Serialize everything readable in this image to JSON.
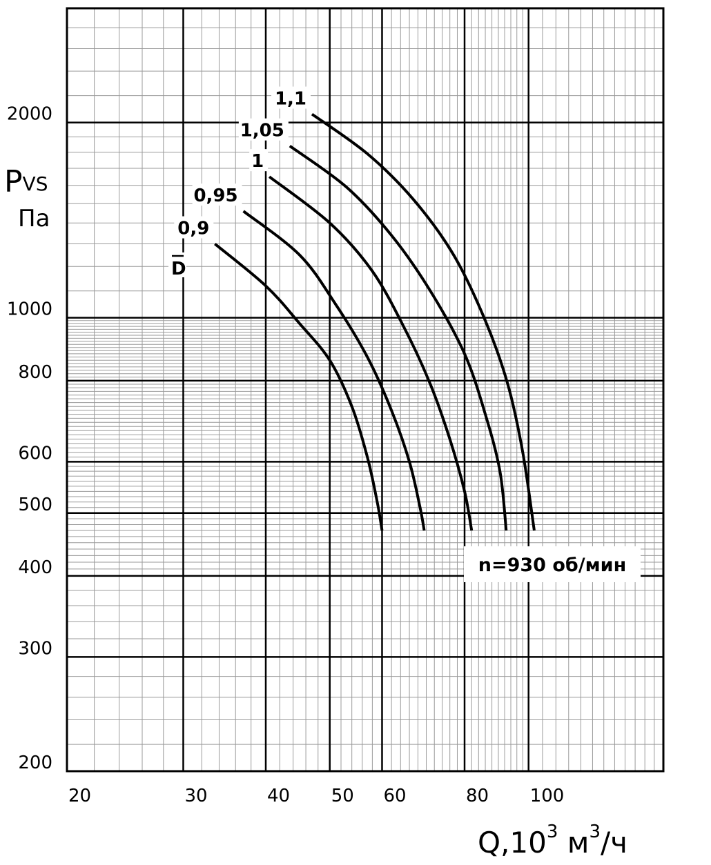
{
  "chart_data": {
    "type": "line",
    "x_scale": "log",
    "y_scale": "log",
    "xlim": [
      20,
      160
    ],
    "ylim": [
      200,
      3000
    ],
    "grid": true,
    "ylabel_main": "P",
    "ylabel_sub": "VS",
    "yunit": "Па",
    "xlabel_main": "Q,10",
    "xlabel_sup1": "3",
    "xlabel_mid": " м",
    "xlabel_sup2": "3",
    "xlabel_end": "/ч",
    "annotation": "n=930 об/мин",
    "legend_symbol": "D",
    "x_ticks": [
      20,
      30,
      40,
      50,
      60,
      80,
      100
    ],
    "x_tick_labels": [
      "20",
      "30",
      "40",
      "50",
      "60",
      "80",
      "100"
    ],
    "y_ticks": [
      200,
      300,
      400,
      500,
      600,
      800,
      1000,
      2000
    ],
    "y_tick_labels": [
      "200",
      "300",
      "400",
      "500",
      "600",
      "800",
      "1000",
      "2000"
    ],
    "series": [
      {
        "name": "0,9",
        "x": [
          33.5,
          40,
          45,
          50,
          54,
          57,
          59,
          60
        ],
        "y": [
          1300,
          1120,
          980,
          860,
          730,
          610,
          520,
          470
        ]
      },
      {
        "name": "0,95",
        "x": [
          37,
          45,
          51,
          57,
          62,
          66,
          68.5,
          69.5
        ],
        "y": [
          1460,
          1250,
          1050,
          870,
          720,
          600,
          510,
          470
        ]
      },
      {
        "name": "1",
        "x": [
          40.5,
          50,
          58,
          65,
          71,
          76,
          80,
          82
        ],
        "y": [
          1650,
          1400,
          1180,
          960,
          790,
          650,
          540,
          470
        ]
      },
      {
        "name": "1,05",
        "x": [
          43.5,
          53,
          62,
          71,
          80,
          86,
          90.5,
          92.5
        ],
        "y": [
          1840,
          1590,
          1340,
          1100,
          880,
          710,
          580,
          470
        ]
      },
      {
        "name": "1,1",
        "x": [
          47,
          57,
          67,
          77,
          86,
          93,
          98,
          102
        ],
        "y": [
          2060,
          1790,
          1520,
          1250,
          990,
          790,
          620,
          470
        ]
      }
    ]
  }
}
